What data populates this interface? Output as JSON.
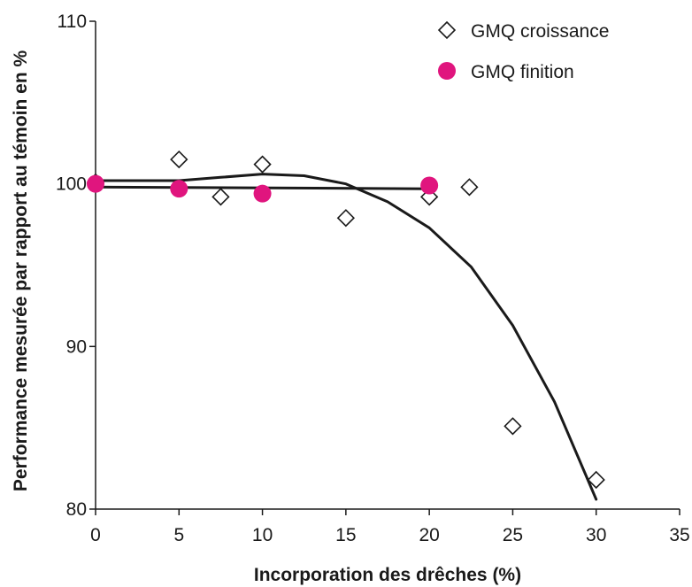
{
  "chart_data": {
    "type": "scatter",
    "xlabel": "Incorporation des drêches (%)",
    "ylabel": "Performance mesurée par rapport au témoin en %",
    "xlim": [
      0,
      35
    ],
    "ylim": [
      80,
      110
    ],
    "xticks": [
      0,
      5,
      10,
      15,
      20,
      25,
      30,
      35
    ],
    "yticks": [
      80,
      90,
      100,
      110
    ],
    "grid": false,
    "legend_position": "top-right",
    "series": [
      {
        "name": "GMQ croissance",
        "marker": "diamond-open",
        "color": "#1a1a1a",
        "points": [
          {
            "x": 0,
            "y": 100.1
          },
          {
            "x": 5,
            "y": 101.5
          },
          {
            "x": 7.5,
            "y": 99.2
          },
          {
            "x": 10,
            "y": 101.2
          },
          {
            "x": 15,
            "y": 97.9
          },
          {
            "x": 20,
            "y": 99.2
          },
          {
            "x": 22.4,
            "y": 99.8
          },
          {
            "x": 25,
            "y": 85.1
          },
          {
            "x": 30,
            "y": 81.8
          }
        ]
      },
      {
        "name": "GMQ finition",
        "marker": "circle-filled",
        "color": "#e0157e",
        "points": [
          {
            "x": 0,
            "y": 100.0
          },
          {
            "x": 5,
            "y": 99.7
          },
          {
            "x": 10,
            "y": 99.4
          },
          {
            "x": 20,
            "y": 99.9
          }
        ]
      }
    ],
    "trendlines": [
      {
        "for_series": "GMQ croissance",
        "kind": "curve",
        "points": [
          {
            "x": 0,
            "y": 100.2
          },
          {
            "x": 5,
            "y": 100.2
          },
          {
            "x": 7.5,
            "y": 100.4
          },
          {
            "x": 10,
            "y": 100.6
          },
          {
            "x": 12.5,
            "y": 100.5
          },
          {
            "x": 15,
            "y": 100.0
          },
          {
            "x": 17.5,
            "y": 98.9
          },
          {
            "x": 20,
            "y": 97.3
          },
          {
            "x": 22.5,
            "y": 94.9
          },
          {
            "x": 25,
            "y": 91.3
          },
          {
            "x": 27.5,
            "y": 86.6
          },
          {
            "x": 30,
            "y": 80.6
          }
        ]
      },
      {
        "for_series": "GMQ finition",
        "kind": "linear",
        "points": [
          {
            "x": 0,
            "y": 99.8
          },
          {
            "x": 20,
            "y": 99.7
          }
        ]
      }
    ]
  }
}
